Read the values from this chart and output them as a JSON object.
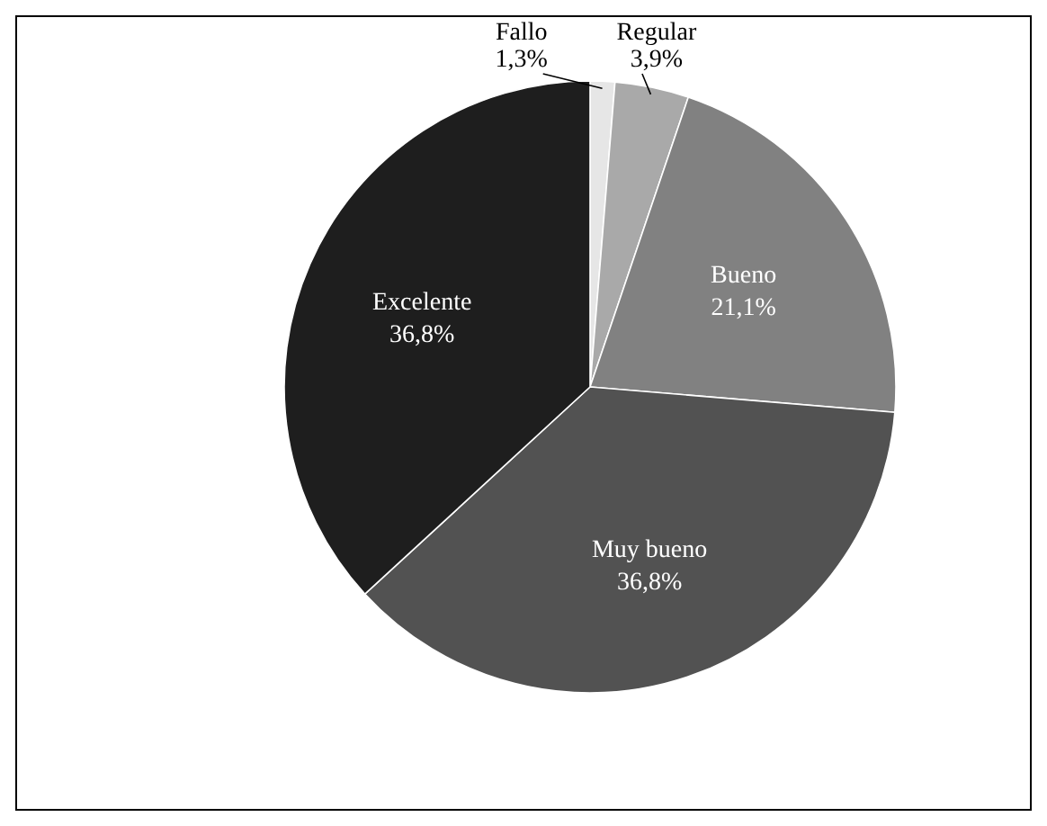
{
  "chart_data": {
    "type": "pie",
    "categories": [
      "Fallo",
      "Regular",
      "Bueno",
      "Muy bueno",
      "Excelente"
    ],
    "values": [
      1.3,
      3.9,
      21.1,
      36.8,
      36.8
    ],
    "colors": [
      "#e6e6e6",
      "#a9a9a9",
      "#818181",
      "#525252",
      "#1e1e1e"
    ],
    "value_labels": [
      "1,3%",
      "3,9%",
      "21,1%",
      "36,8%",
      "36,8%"
    ]
  }
}
